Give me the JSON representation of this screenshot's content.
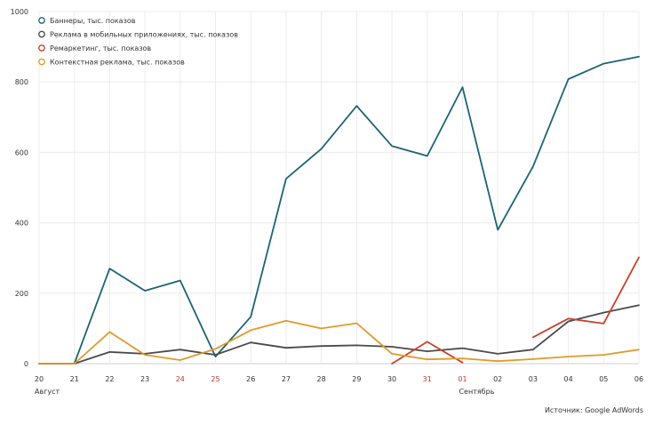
{
  "chart_data": {
    "type": "line",
    "title": "",
    "xlabel": "",
    "ylabel": "",
    "ylim": [
      0,
      1000
    ],
    "yticks": [
      "0",
      "200",
      "400",
      "600",
      "800",
      "1000"
    ],
    "ytick_values": [
      0,
      200,
      400,
      600,
      800,
      1000
    ],
    "grid": true,
    "legend_position": "top-left",
    "categories": [
      "20",
      "21",
      "22",
      "23",
      "24",
      "25",
      "26",
      "27",
      "28",
      "29",
      "30",
      "31",
      "01",
      "02",
      "03",
      "04",
      "05",
      "06"
    ],
    "weekend_color": "#c0392b",
    "weekend_categories": [
      "24",
      "25",
      "31",
      "01"
    ],
    "month_labels": [
      {
        "label": "Август",
        "at": "20"
      },
      {
        "label": "Сентябрь",
        "at": "01"
      }
    ],
    "series": [
      {
        "name": "Баннеры, тыс. показов",
        "color": "#1d6474",
        "values": [
          0,
          0,
          270,
          207,
          236,
          20,
          133,
          525,
          610,
          732,
          618,
          590,
          785,
          380,
          560,
          808,
          852,
          872
        ]
      },
      {
        "name": "Реклама в мобильных приложениях, тыс. показов",
        "color": "#4a4a4a",
        "values": [
          0,
          0,
          33,
          28,
          40,
          25,
          60,
          45,
          50,
          52,
          48,
          35,
          44,
          28,
          40,
          120,
          145,
          166
        ]
      },
      {
        "name": "Ремаркетинг, тыс. показов",
        "color": "#c9412b",
        "values": [
          null,
          null,
          null,
          null,
          null,
          null,
          null,
          null,
          null,
          null,
          0,
          62,
          3,
          null,
          75,
          128,
          114,
          302
        ]
      },
      {
        "name": "Контекстная реклама, тыс. показов",
        "color": "#e09a2a",
        "values": [
          0,
          0,
          90,
          25,
          10,
          42,
          95,
          122,
          100,
          115,
          28,
          12,
          15,
          7,
          13,
          20,
          25,
          40
        ]
      }
    ]
  },
  "source": "Источник: Google AdWords"
}
